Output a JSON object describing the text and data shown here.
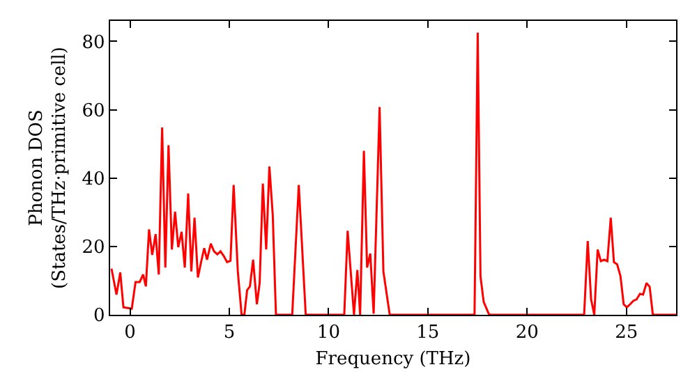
{
  "chart_data": {
    "type": "line",
    "xlabel": "Frequency (THz)",
    "ylabel": "Phonon DOS\n(States/THz·primitive cell)",
    "xlim": [
      -1,
      27.5
    ],
    "ylim": [
      0,
      86
    ],
    "xticks": [
      0,
      5,
      10,
      15,
      20,
      25
    ],
    "yticks": [
      0,
      20,
      40,
      60,
      80
    ],
    "grid": false,
    "marker": "none",
    "line_style": "solid",
    "series": [
      {
        "color": "#ff0000",
        "x": [
          -0.93,
          -0.68,
          -0.49,
          -0.33,
          0.09,
          0.28,
          0.49,
          0.66,
          0.8,
          0.96,
          1.12,
          1.29,
          1.45,
          1.62,
          1.78,
          1.94,
          2.11,
          2.27,
          2.43,
          2.6,
          2.76,
          2.93,
          3.09,
          3.25,
          3.42,
          3.58,
          3.74,
          3.88,
          4.07,
          4.23,
          4.4,
          4.56,
          4.73,
          4.89,
          5.06,
          5.22,
          5.43,
          5.62,
          5.76,
          5.9,
          6.04,
          6.2,
          6.39,
          6.53,
          6.69,
          6.86,
          7.02,
          7.19,
          7.35,
          8.17,
          8.5,
          8.85,
          10.79,
          10.96,
          11.28,
          11.45,
          11.59,
          11.78,
          11.94,
          12.1,
          12.27,
          12.57,
          12.76,
          13.08,
          17.35,
          17.51,
          17.65,
          17.81,
          18.05,
          18.1,
          22.87,
          23.05,
          23.22,
          23.38,
          23.55,
          23.71,
          23.88,
          24.04,
          24.21,
          24.37,
          24.53,
          24.7,
          24.86,
          25.02,
          25.19,
          25.35,
          25.51,
          25.68,
          25.84,
          26.01,
          26.17,
          26.33,
          27.5
        ],
        "values": [
          13.5,
          5.9,
          12.4,
          2.2,
          1.8,
          9.6,
          9.6,
          11.8,
          8.3,
          25,
          17.5,
          23.6,
          11.8,
          54.8,
          13.8,
          49.6,
          19.1,
          30.2,
          19.8,
          24.3,
          13.8,
          35.5,
          12.7,
          28.4,
          10.9,
          15.4,
          19.5,
          16.1,
          20.8,
          18.6,
          17.7,
          18.6,
          17.1,
          15.4,
          15.8,
          38,
          12.7,
          0,
          0,
          7.2,
          8.3,
          16.1,
          3.1,
          9.3,
          38.4,
          19.1,
          43.4,
          29.1,
          0,
          0,
          38,
          0,
          0,
          24.6,
          0,
          13.1,
          0,
          48,
          13.8,
          17.9,
          0.3,
          60.8,
          12.7,
          0,
          0,
          82.6,
          11.3,
          3.8,
          0.5,
          0,
          0,
          21.6,
          4.5,
          0,
          19.1,
          15.7,
          16.1,
          15.7,
          28.4,
          15.4,
          14.8,
          11.3,
          3.1,
          2.2,
          3.1,
          4.1,
          4.5,
          6.1,
          5.9,
          9.3,
          8.2,
          0,
          0
        ]
      }
    ]
  }
}
